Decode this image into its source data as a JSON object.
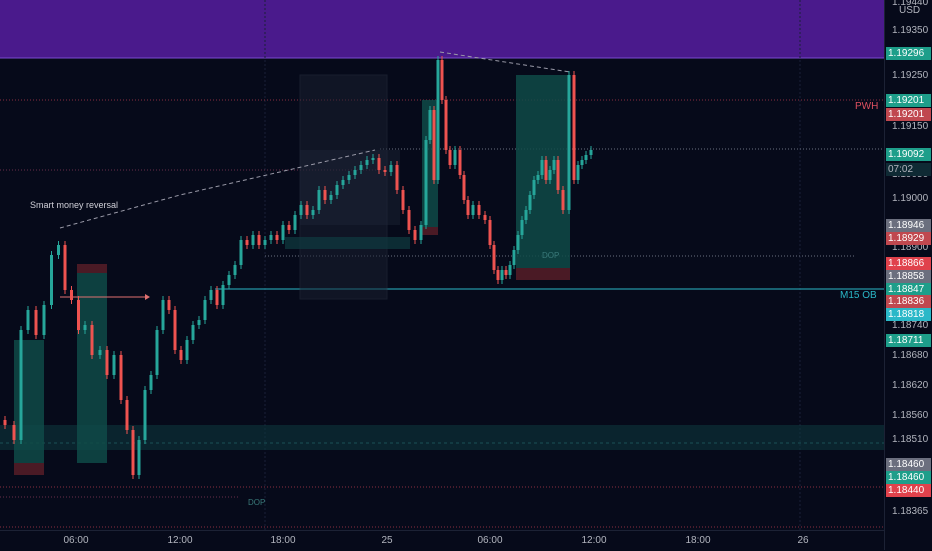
{
  "currency": "USD",
  "price_axis": {
    "ticks": [
      "1.19440",
      "1.19350",
      "1.19250",
      "1.19150",
      "1.19050",
      "1.19000",
      "1.18900",
      "1.18740",
      "1.18680",
      "1.18620",
      "1.18560",
      "1.18510",
      "1.18365"
    ],
    "tags": [
      {
        "value": "1.19296",
        "color": "#1e9e8a"
      },
      {
        "value": "1.19201",
        "color": "#1e9e8a"
      },
      {
        "value": "1.19201",
        "color": "#c0484f"
      },
      {
        "value": "1.19092",
        "color": "#1e9e8a"
      },
      {
        "value": "07:02",
        "color": "#1e9e8a"
      },
      {
        "value": "1.18946",
        "color": "#6b6f7e"
      },
      {
        "value": "1.18929",
        "color": "#c0484f"
      },
      {
        "value": "1.18866",
        "color": "#e0424c"
      },
      {
        "value": "1.18858",
        "color": "#6b6f7e"
      },
      {
        "value": "1.18847",
        "color": "#1e9e8a"
      },
      {
        "value": "1.18836",
        "color": "#c0484f"
      },
      {
        "value": "1.18818",
        "color": "#2ab8c8"
      },
      {
        "value": "1.18711",
        "color": "#1e9e8a"
      },
      {
        "value": "1.18460",
        "color": "#6b6f7e"
      },
      {
        "value": "1.18460",
        "color": "#1e9e8a"
      },
      {
        "value": "1.18440",
        "color": "#e0424c"
      }
    ]
  },
  "time_axis": [
    "06:00",
    "12:00",
    "18:00",
    "25",
    "06:00",
    "12:00",
    "18:00",
    "26"
  ],
  "annotations": {
    "smart_money": "Smart money reversal",
    "pwh": "PWH",
    "m15_ob": "M15 OB",
    "dop1": "DOP",
    "dop2": "DOP"
  },
  "colors": {
    "up": "#26a69a",
    "down": "#ef5350",
    "purple_zone": "#4a1a8c",
    "pwh_line": "#c0484f",
    "ob_line": "#2ab8c8"
  }
}
